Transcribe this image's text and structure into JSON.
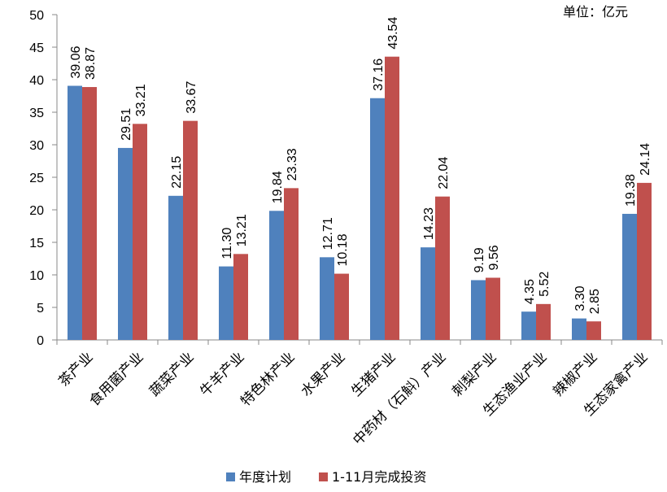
{
  "chart_data": {
    "type": "bar",
    "unit_note": "单位：亿元",
    "categories": [
      "茶产业",
      "食用菌产业",
      "蔬菜产业",
      "牛羊产业",
      "特色林产业",
      "水果产业",
      "生猪产业",
      "中药材（石斛）产业",
      "刺梨产业",
      "生态渔业产业",
      "辣椒产业",
      "生态家禽产业"
    ],
    "series": [
      {
        "name": "年度计划",
        "color": "#4F81BD",
        "values": [
          39.06,
          29.51,
          22.15,
          11.3,
          19.84,
          12.71,
          37.16,
          14.23,
          9.19,
          4.35,
          3.3,
          19.38
        ],
        "labels": [
          "39.06",
          "29.51",
          "22.15",
          "11.30",
          "19.84",
          "12.71",
          "37.16",
          "14.23",
          "9.19",
          "4.35",
          "3.30",
          "19.38"
        ]
      },
      {
        "name": "1-11月完成投资",
        "color": "#C0504D",
        "values": [
          38.87,
          33.21,
          33.67,
          13.21,
          23.33,
          10.18,
          43.54,
          22.04,
          9.56,
          5.52,
          2.85,
          24.14
        ],
        "labels": [
          "38.87",
          "33.21",
          "33.67",
          "13.21",
          "23.33",
          "10.18",
          "43.54",
          "22.04",
          "9.56",
          "5.52",
          "2.85",
          "24.14"
        ]
      }
    ],
    "ylim": [
      0,
      50
    ],
    "yticks": [
      "0",
      "5",
      "10",
      "15",
      "20",
      "25",
      "30",
      "35",
      "40",
      "45",
      "50"
    ],
    "grid": false,
    "legend_position": "bottom"
  }
}
